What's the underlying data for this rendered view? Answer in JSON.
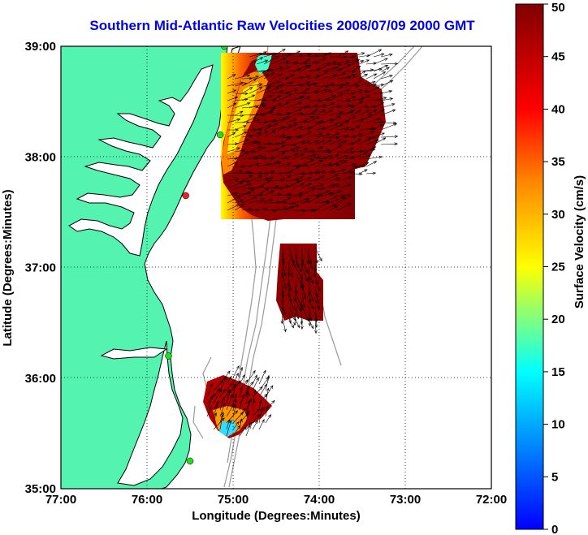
{
  "title": "Southern Mid-Atlantic Raw Velocities 2008/07/09 2000 GMT",
  "axes": {
    "xlabel": "Longitude (Degrees:Minutes)",
    "ylabel": "Latitude (Degrees:Minutes)",
    "x_ticks": [
      "77:00",
      "76:00",
      "75:00",
      "74:00",
      "73:00",
      "72:00"
    ],
    "y_ticks": [
      "39:00",
      "38:00",
      "37:00",
      "36:00",
      "35:00"
    ],
    "x_range": [
      -77,
      -72
    ],
    "y_range": [
      35,
      39
    ],
    "grid": "dotted"
  },
  "colorbar": {
    "label": "Surface Velocity (cm/s)",
    "ticks": [
      "50",
      "45",
      "40",
      "35",
      "30",
      "25",
      "20",
      "15",
      "10",
      "5",
      "0"
    ],
    "range": [
      0,
      50
    ],
    "colormap": "jet"
  },
  "colors": {
    "land": "#55f3b0",
    "water": "#ffffff",
    "title": "#0000ee",
    "bathymetry": "#999999",
    "station": "#22dd22",
    "station_alert": "#ee2222"
  },
  "stations": [
    {
      "lon": -75.1,
      "lat": 39.0,
      "status": "ok"
    },
    {
      "lon": -75.15,
      "lat": 38.2,
      "status": "ok"
    },
    {
      "lon": -75.55,
      "lat": 37.65,
      "status": "alert"
    },
    {
      "lon": -75.75,
      "lat": 36.2,
      "status": "ok"
    },
    {
      "lon": -75.5,
      "lat": 35.25,
      "status": "ok"
    }
  ]
}
